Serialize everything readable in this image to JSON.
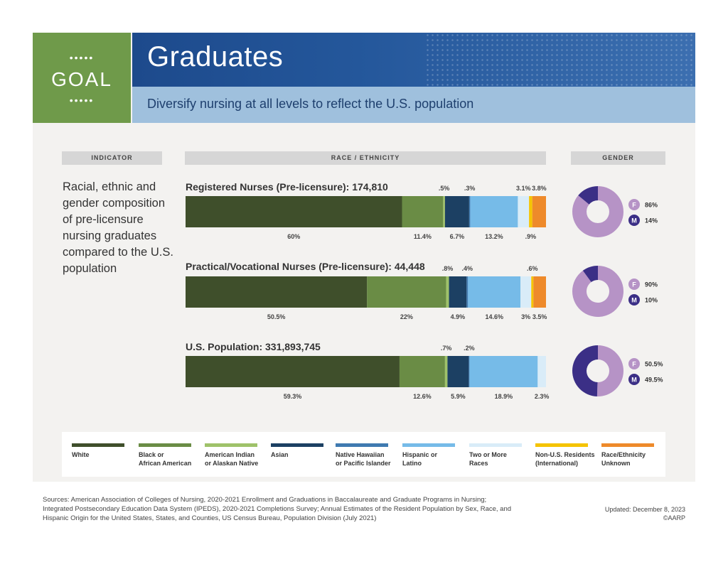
{
  "header": {
    "goal_dots_top": "•••••",
    "goal_label": "GOAL",
    "goal_dots_bottom": "•••••",
    "title": "Graduates",
    "subtitle": "Diversify nursing at all levels to reflect the U.S. population"
  },
  "columns": {
    "indicator": "INDICATOR",
    "race": "RACE / ETHNICITY",
    "gender": "GENDER"
  },
  "indicator_text": "Racial, ethnic and gender composition of pre-licensure nursing graduates compared to the U.S. population",
  "colors": {
    "White": "#3f4f2b",
    "Black or African American": "#6a8c45",
    "American Indian or Alaskan Native": "#9fc26a",
    "Asian": "#1c4063",
    "Native Hawaiian or Pacific Islander": "#3f7ab0",
    "Hispanic or Latino": "#76bbe8",
    "Two or More Races": "#d9ecf8",
    "Non-U.S. Residents (International)": "#f5c400",
    "Race/Ethnicity Unknown": "#ee8a2a",
    "female": "#b693c6",
    "male": "#3b2f86"
  },
  "chart_data": [
    {
      "type": "bar",
      "orientation": "horizontal-stacked",
      "title": "Registered Nurses (Pre-licensure): 174,810",
      "categories": [
        "White",
        "Black or African American",
        "American Indian or Alaskan Native",
        "Asian",
        "Native Hawaiian or Pacific Islander",
        "Hispanic or Latino",
        "Two or More Races",
        "Non-U.S. Residents (International)",
        "Race/Ethnicity Unknown"
      ],
      "values": [
        60,
        11.4,
        0.5,
        6.7,
        0.3,
        13.2,
        3.1,
        0.9,
        3.8
      ],
      "labels": [
        "60%",
        "11.4%",
        ".5%",
        "6.7%",
        ".3%",
        "13.2%",
        "3.1%",
        ".9%",
        "3.8%"
      ],
      "label_rows": [
        "bottom",
        "bottom",
        "top",
        "bottom",
        "top",
        "bottom",
        "top",
        "bottom",
        "top"
      ]
    },
    {
      "type": "bar",
      "orientation": "horizontal-stacked",
      "title": "Practical/Vocational Nurses (Pre-licensure): 44,448",
      "categories": [
        "White",
        "Black or African American",
        "American Indian or Alaskan Native",
        "Asian",
        "Native Hawaiian or Pacific Islander",
        "Hispanic or Latino",
        "Two or More Races",
        "Non-U.S. Residents (International)",
        "Race/Ethnicity Unknown"
      ],
      "values": [
        50.5,
        22,
        0.8,
        4.9,
        0.4,
        14.6,
        3,
        0.6,
        3.5
      ],
      "labels": [
        "50.5%",
        "22%",
        ".8%",
        "4.9%",
        ".4%",
        "14.6%",
        "3%",
        ".6%",
        "3.5%"
      ],
      "label_rows": [
        "bottom",
        "bottom",
        "top",
        "bottom",
        "top",
        "bottom",
        "bottom",
        "top",
        "bottom"
      ]
    },
    {
      "type": "bar",
      "orientation": "horizontal-stacked",
      "title": "U.S. Population: 331,893,745",
      "categories": [
        "White",
        "Black or African American",
        "American Indian or Alaskan Native",
        "Asian",
        "Native Hawaiian or Pacific Islander",
        "Hispanic or Latino",
        "Two or More Races"
      ],
      "values": [
        59.3,
        12.6,
        0.7,
        5.9,
        0.2,
        18.9,
        2.3
      ],
      "labels": [
        "59.3%",
        "12.6%",
        ".7%",
        "5.9%",
        ".2%",
        "18.9%",
        "2.3%"
      ],
      "label_rows": [
        "bottom",
        "bottom",
        "top",
        "bottom",
        "top",
        "bottom",
        "bottom"
      ]
    },
    {
      "type": "pie",
      "variant": "donut",
      "categories": [
        "F",
        "M"
      ],
      "values": [
        86,
        14
      ],
      "labels": [
        "86%",
        "14%"
      ]
    },
    {
      "type": "pie",
      "variant": "donut",
      "categories": [
        "F",
        "M"
      ],
      "values": [
        90,
        10
      ],
      "labels": [
        "90%",
        "10%"
      ]
    },
    {
      "type": "pie",
      "variant": "donut",
      "categories": [
        "F",
        "M"
      ],
      "values": [
        50.5,
        49.5
      ],
      "labels": [
        "50.5%",
        "49.5%"
      ]
    }
  ],
  "legend": [
    {
      "key": "White",
      "line1": "White",
      "line2": ""
    },
    {
      "key": "Black or African American",
      "line1": "Black or",
      "line2": "African American"
    },
    {
      "key": "American Indian or Alaskan Native",
      "line1": "American Indian",
      "line2": "or Alaskan Native"
    },
    {
      "key": "Asian",
      "line1": "Asian",
      "line2": ""
    },
    {
      "key": "Native Hawaiian or Pacific Islander",
      "line1": "Native Hawaiian",
      "line2": "or Pacific Islander"
    },
    {
      "key": "Hispanic or Latino",
      "line1": "Hispanic or",
      "line2": "Latino"
    },
    {
      "key": "Two or More Races",
      "line1": "Two or More",
      "line2": "Races"
    },
    {
      "key": "Non-U.S. Residents (International)",
      "line1": "Non-U.S. Residents",
      "line2": "(International)"
    },
    {
      "key": "Race/Ethnicity Unknown",
      "line1": "Race/Ethnicity",
      "line2": "Unknown"
    }
  ],
  "footer": {
    "sources": "Sources: American Association of Colleges of Nursing, 2020-2021 Enrollment and Graduations in Baccalaureate and Graduate Programs in Nursing; Integrated Postsecondary Education Data System (IPEDS), 2020-2021 Completions Survey; Annual Estimates of the Resident Population by Sex, Race, and Hispanic Origin for the United States, States, and Counties, US Census Bureau, Population Division (July 2021)",
    "updated": "Updated: December 8, 2023",
    "copyright": "©AARP"
  }
}
